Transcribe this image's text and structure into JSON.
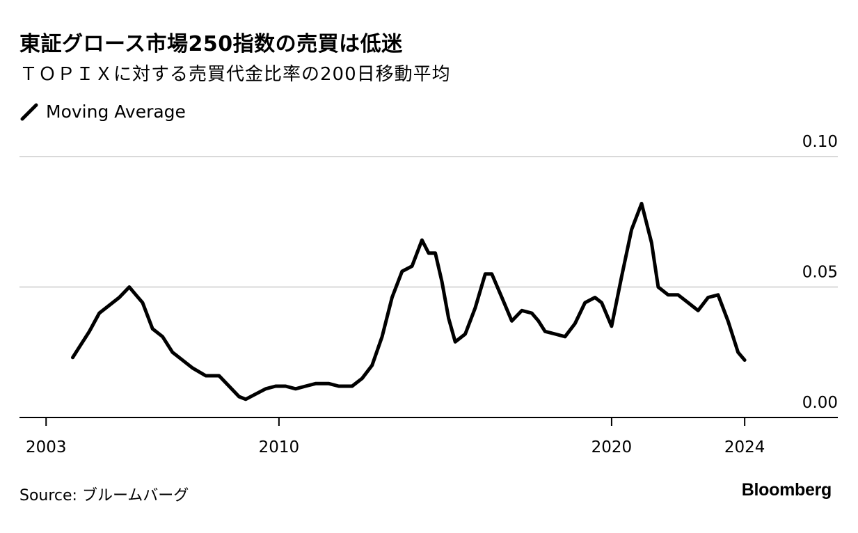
{
  "title": "東証グロース市場250指数の売買は低迷",
  "subtitle": "ＴＯＰＩＸに対する売買代金比率の200日移動平均",
  "legend": {
    "label": "Moving Average"
  },
  "source": "Source: ブルームバーグ",
  "brand": "Bloomberg",
  "colors": {
    "line": "#000000",
    "grid": "#d9d9d9",
    "axis": "#000000"
  },
  "chart_data": {
    "type": "line",
    "title": "東証グロース市場250指数の売買は低迷",
    "subtitle": "ＴＯＰＩＸに対する売買代金比率の200日移動平均",
    "xlabel": "",
    "ylabel": "",
    "xlim": [
      2002.2,
      2026.8
    ],
    "ylim": [
      0.0,
      0.1
    ],
    "x_ticks": [
      2003,
      2010,
      2020,
      2024
    ],
    "y_ticks": [
      0.0,
      0.05,
      0.1
    ],
    "y_tick_labels": [
      "0.00",
      "0.05",
      "0.10"
    ],
    "grid": true,
    "legend_position": "top-left",
    "series": [
      {
        "name": "Moving Average",
        "x": [
          2003.8,
          2004.0,
          2004.3,
          2004.6,
          2004.8,
          2005.2,
          2005.5,
          2005.7,
          2005.9,
          2006.2,
          2006.5,
          2006.8,
          2007.0,
          2007.4,
          2007.8,
          2008.2,
          2008.5,
          2008.8,
          2009.0,
          2009.3,
          2009.6,
          2009.9,
          2010.2,
          2010.5,
          2010.8,
          2011.1,
          2011.5,
          2011.8,
          2012.2,
          2012.5,
          2012.8,
          2013.1,
          2013.4,
          2013.7,
          2014.0,
          2014.3,
          2014.5,
          2014.7,
          2014.9,
          2015.1,
          2015.3,
          2015.6,
          2015.9,
          2016.2,
          2016.4,
          2016.7,
          2017.0,
          2017.3,
          2017.6,
          2017.8,
          2018.0,
          2018.3,
          2018.6,
          2018.9,
          2019.2,
          2019.5,
          2019.7,
          2020.0,
          2020.3,
          2020.6,
          2020.9,
          2021.2,
          2021.4,
          2021.7,
          2022.0,
          2022.3,
          2022.6,
          2022.9,
          2023.2,
          2023.5,
          2023.8,
          2024.0
        ],
        "values": [
          0.023,
          0.027,
          0.033,
          0.04,
          0.042,
          0.046,
          0.05,
          0.047,
          0.044,
          0.034,
          0.031,
          0.025,
          0.023,
          0.019,
          0.016,
          0.016,
          0.012,
          0.008,
          0.007,
          0.009,
          0.011,
          0.012,
          0.012,
          0.011,
          0.012,
          0.013,
          0.013,
          0.012,
          0.012,
          0.015,
          0.02,
          0.031,
          0.046,
          0.056,
          0.058,
          0.068,
          0.063,
          0.063,
          0.052,
          0.038,
          0.029,
          0.032,
          0.042,
          0.055,
          0.055,
          0.046,
          0.037,
          0.041,
          0.04,
          0.037,
          0.033,
          0.032,
          0.031,
          0.036,
          0.044,
          0.046,
          0.044,
          0.035,
          0.054,
          0.072,
          0.082,
          0.067,
          0.05,
          0.047,
          0.047,
          0.044,
          0.041,
          0.046,
          0.047,
          0.037,
          0.025,
          0.022
        ]
      }
    ]
  }
}
